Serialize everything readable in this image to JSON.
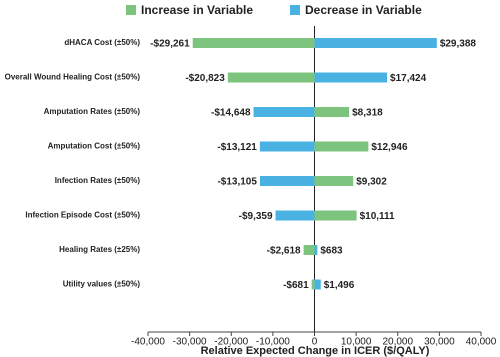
{
  "chart_data": {
    "type": "tornado",
    "x_label": "Relative Expected Change in ICER ($/QALY)",
    "categories": [
      "dHACA Cost (±50%)",
      "Overall Wound Healing Cost (±50%)",
      "Amputation Rates (±50%)",
      "Amputation Cost (±50%)",
      "Infection Rates (±50%)",
      "Infection Episode Cost (±50%)",
      "Healing Rates (±25%)",
      "Utility values  (±50%)"
    ],
    "series": [
      {
        "name": "Increase in Variable",
        "color": "#7dc57f",
        "values": [
          -29261,
          -20823,
          8318,
          12946,
          9302,
          10111,
          -2618,
          -681
        ],
        "value_labels": [
          "-$29,261",
          "-$20,823",
          "$8,318",
          "$12,946",
          "$9,302",
          "$10,111",
          "-$2,618",
          "-$681"
        ]
      },
      {
        "name": "Decrease in Variable",
        "color": "#49b2e2",
        "values": [
          29388,
          17424,
          -14648,
          -13121,
          -13105,
          -9359,
          683,
          1496
        ],
        "value_labels": [
          "$29,388",
          "$17,424",
          "-$14,648",
          "-$13,121",
          "-$13,105",
          "-$9,359",
          "$683",
          "$1,496"
        ]
      }
    ],
    "xlim": [
      -40000,
      40000
    ],
    "xticks": [
      {
        "value": -40000,
        "label": "-40,000"
      },
      {
        "value": -30000,
        "label": "-30,000"
      },
      {
        "value": -20000,
        "label": "-20,000"
      },
      {
        "value": -10000,
        "label": "-10,000"
      },
      0,
      {
        "value": 10000,
        "label": "10,000"
      },
      {
        "value": 20000,
        "label": "20,000"
      },
      {
        "value": 30000,
        "label": "30,000"
      },
      {
        "value": 40000,
        "label": "40,000"
      }
    ]
  }
}
